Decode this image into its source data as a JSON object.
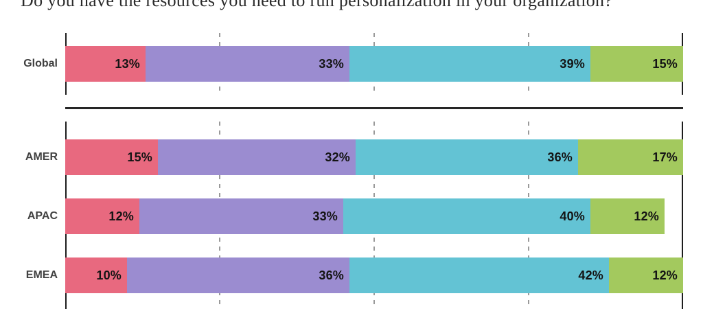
{
  "title": "Do you have the resources you need to run personalization in your organization?",
  "chart_data": {
    "type": "bar",
    "variant": "horizontal-stacked",
    "unit": "%",
    "categories": [
      "Global",
      "AMER",
      "APAC",
      "EMEA"
    ],
    "groups": [
      {
        "name": "global",
        "categories": [
          "Global"
        ]
      },
      {
        "name": "regions",
        "categories": [
          "AMER",
          "APAC",
          "EMEA"
        ]
      }
    ],
    "series": [
      {
        "name": "pink",
        "color": "#E8697F",
        "values": [
          13,
          15,
          12,
          10
        ]
      },
      {
        "name": "purple",
        "color": "#9B8CD0",
        "values": [
          33,
          32,
          33,
          36
        ]
      },
      {
        "name": "teal",
        "color": "#63C3D4",
        "values": [
          39,
          36,
          40,
          42
        ]
      },
      {
        "name": "green",
        "color": "#A3C95E",
        "values": [
          15,
          17,
          12,
          12
        ]
      }
    ],
    "xlim": [
      0,
      100
    ],
    "axis": {
      "solid_percents": [
        0,
        100
      ],
      "dashed_percents": [
        25,
        50,
        75
      ]
    },
    "grid": "vertical-dashed",
    "legend": "none"
  },
  "colors": {
    "background": "#ffffff",
    "title_text": "#2b2b2b",
    "axis_solid": "#1d1d1d",
    "gridline_dashed": "#9a9a9a",
    "separator": "#262626",
    "category_label": "#414141",
    "value_label": "#141414"
  }
}
